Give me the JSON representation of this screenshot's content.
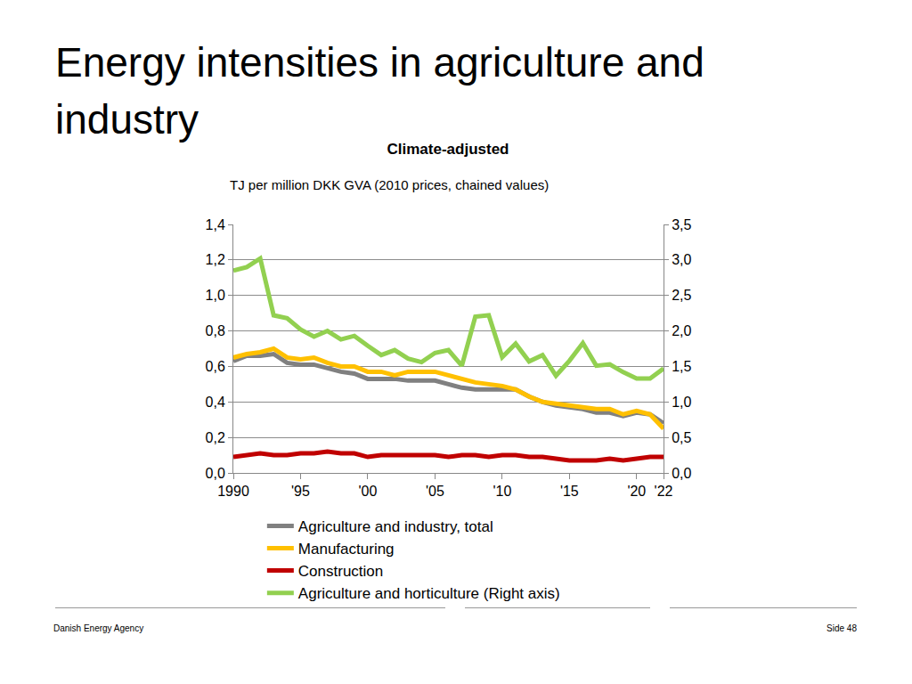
{
  "slide": {
    "title": "Energy intensities in agriculture and industry",
    "footer_left": "Danish Energy Agency",
    "footer_right": "Side 48"
  },
  "chart_data": {
    "type": "line",
    "title": "Climate-adjusted",
    "subtitle": "TJ per million DKK GVA (2010 prices, chained values)",
    "x": [
      1990,
      1991,
      1992,
      1993,
      1994,
      1995,
      1996,
      1997,
      1998,
      1999,
      2000,
      2001,
      2002,
      2003,
      2004,
      2005,
      2006,
      2007,
      2008,
      2009,
      2010,
      2011,
      2012,
      2013,
      2014,
      2015,
      2016,
      2017,
      2018,
      2019,
      2020,
      2021,
      2022
    ],
    "xlim": [
      1990,
      2022
    ],
    "xticks": [
      1990,
      {
        "value": 1995,
        "label": "'95"
      },
      {
        "value": 2000,
        "label": "'00"
      },
      {
        "value": 2005,
        "label": "'05"
      },
      {
        "value": 2010,
        "label": "'10"
      },
      {
        "value": 2015,
        "label": "'15"
      },
      {
        "value": 2020,
        "label": "'20"
      },
      {
        "value": 2022,
        "label": "'22"
      }
    ],
    "ylim": [
      0,
      1.4
    ],
    "yticks": [
      {
        "value": 0,
        "label": "0,0"
      },
      {
        "value": 0.2,
        "label": "0,2"
      },
      {
        "value": 0.4,
        "label": "0,4"
      },
      {
        "value": 0.6,
        "label": "0,6"
      },
      {
        "value": 0.8,
        "label": "0,8"
      },
      {
        "value": 1.0,
        "label": "1,0"
      },
      {
        "value": 1.2,
        "label": "1,2"
      },
      {
        "value": 1.4,
        "label": "1,4"
      }
    ],
    "y2lim": [
      0,
      3.5
    ],
    "y2ticks": [
      {
        "value": 0,
        "label": "0,0"
      },
      {
        "value": 0.5,
        "label": "0,5"
      },
      {
        "value": 1.0,
        "label": "1,0"
      },
      {
        "value": 1.5,
        "label": "1,5"
      },
      {
        "value": 2.0,
        "label": "2,0"
      },
      {
        "value": 2.5,
        "label": "2,5"
      },
      {
        "value": 3.0,
        "label": "3,0"
      },
      {
        "value": 3.5,
        "label": "3,5"
      }
    ],
    "grid": true,
    "legend": "bottom",
    "series": [
      {
        "name": "Agriculture and industry, total",
        "color": "#808080",
        "values": [
          0.63,
          0.66,
          0.66,
          0.67,
          0.62,
          0.61,
          0.61,
          0.59,
          0.57,
          0.56,
          0.53,
          0.53,
          0.53,
          0.52,
          0.52,
          0.52,
          0.5,
          0.48,
          0.47,
          0.47,
          0.47,
          0.47,
          0.43,
          0.4,
          0.38,
          0.37,
          0.36,
          0.34,
          0.34,
          0.32,
          0.34,
          0.33,
          0.28
        ]
      },
      {
        "name": "Manufacturing",
        "color": "#FFC000",
        "values": [
          0.65,
          0.67,
          0.68,
          0.7,
          0.65,
          0.64,
          0.65,
          0.62,
          0.6,
          0.6,
          0.57,
          0.57,
          0.55,
          0.57,
          0.57,
          0.57,
          0.55,
          0.53,
          0.51,
          0.5,
          0.49,
          0.47,
          0.43,
          0.4,
          0.39,
          0.38,
          0.37,
          0.36,
          0.36,
          0.33,
          0.35,
          0.33,
          0.25
        ]
      },
      {
        "name": "Construction",
        "color": "#C00000",
        "values": [
          0.09,
          0.1,
          0.11,
          0.1,
          0.1,
          0.11,
          0.11,
          0.12,
          0.11,
          0.11,
          0.09,
          0.1,
          0.1,
          0.1,
          0.1,
          0.1,
          0.09,
          0.1,
          0.1,
          0.09,
          0.1,
          0.1,
          0.09,
          0.09,
          0.08,
          0.07,
          0.07,
          0.07,
          0.08,
          0.07,
          0.08,
          0.09,
          0.09
        ]
      },
      {
        "name": "Agriculture and horticulture (Right axis)",
        "color": "#92D050",
        "axis": "y2",
        "values": [
          2.85,
          2.9,
          3.02,
          2.22,
          2.18,
          2.02,
          1.92,
          2.0,
          1.88,
          1.93,
          1.79,
          1.66,
          1.73,
          1.61,
          1.56,
          1.69,
          1.73,
          1.51,
          2.2,
          2.22,
          1.63,
          1.82,
          1.57,
          1.66,
          1.37,
          1.58,
          1.83,
          1.51,
          1.53,
          1.42,
          1.33,
          1.33,
          1.47
        ]
      }
    ]
  }
}
